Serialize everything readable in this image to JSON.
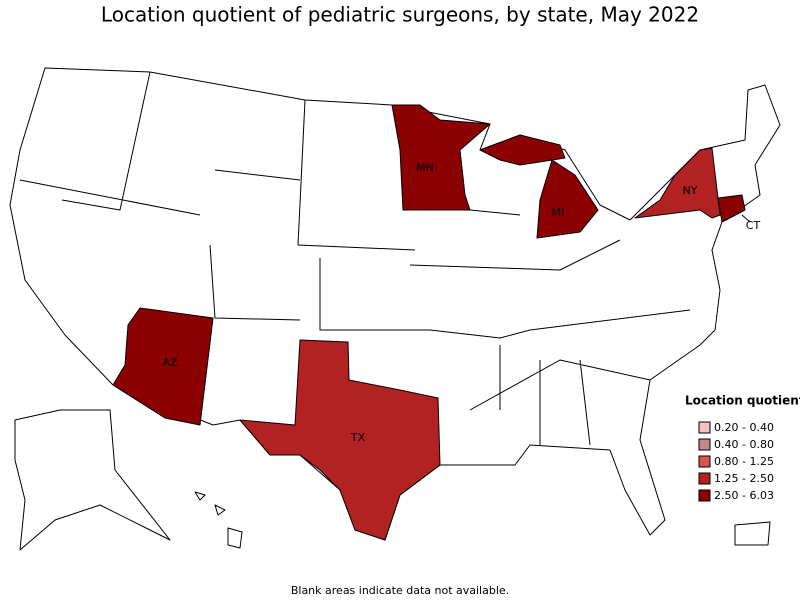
{
  "title": "Location quotient of pediatric surgeons, by state, May 2022",
  "states": [
    {
      "label": "MN",
      "color": "#8b0000"
    },
    {
      "label": "MI",
      "color": "#8b0000"
    },
    {
      "label": "NY",
      "color": "#b22222"
    },
    {
      "label": "CT",
      "color": "#8b0000"
    },
    {
      "label": "AZ",
      "color": "#8b0000"
    },
    {
      "label": "TX",
      "color": "#b22222"
    }
  ],
  "legend": {
    "title": "Location quotient",
    "items": [
      {
        "label": "0.20 - 0.40",
        "color": "#f4c2c2"
      },
      {
        "label": "0.40 - 0.80",
        "color": "#c48a8a"
      },
      {
        "label": "0.80 - 1.25",
        "color": "#d9534f"
      },
      {
        "label": "1.25 - 2.50",
        "color": "#b22222"
      },
      {
        "label": "2.50 - 6.03",
        "color": "#8b0000"
      }
    ]
  },
  "footnote": "Blank areas indicate data not available."
}
